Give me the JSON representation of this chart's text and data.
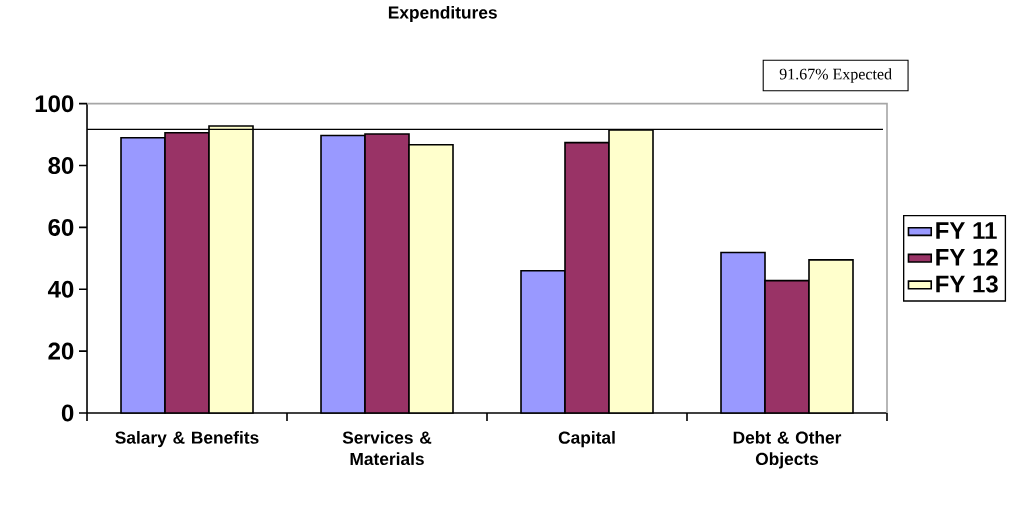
{
  "chart_data": {
    "type": "bar",
    "title": "Expenditures",
    "categories": [
      "Salary & Benefits",
      "Services & Materials",
      "Capital",
      "Debt & Other Objects"
    ],
    "series": [
      {
        "name": "FY 11",
        "color": "#9999ff",
        "values": [
          89.0,
          89.7,
          46.0,
          51.9
        ]
      },
      {
        "name": "FY 12",
        "color": "#993366",
        "values": [
          90.6,
          90.2,
          87.4,
          42.8
        ]
      },
      {
        "name": "FY 13",
        "color": "#ffffcc",
        "values": [
          92.8,
          86.7,
          91.5,
          49.5
        ]
      }
    ],
    "ylim": [
      0,
      100
    ],
    "yticks": [
      0,
      20,
      40,
      60,
      80,
      100
    ],
    "ref_lines": [
      {
        "axis": "y",
        "value": 91.67,
        "label": "91.67% Expected"
      }
    ],
    "legend": "right"
  }
}
